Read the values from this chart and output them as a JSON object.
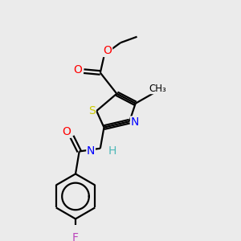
{
  "background_color": "#ebebeb",
  "atom_colors": {
    "C": "#000000",
    "H": "#4db8b8",
    "N": "#0000ff",
    "O": "#ff0000",
    "S": "#cccc00",
    "F": "#bb44bb"
  },
  "figsize": [
    3.0,
    3.0
  ],
  "dpi": 100
}
